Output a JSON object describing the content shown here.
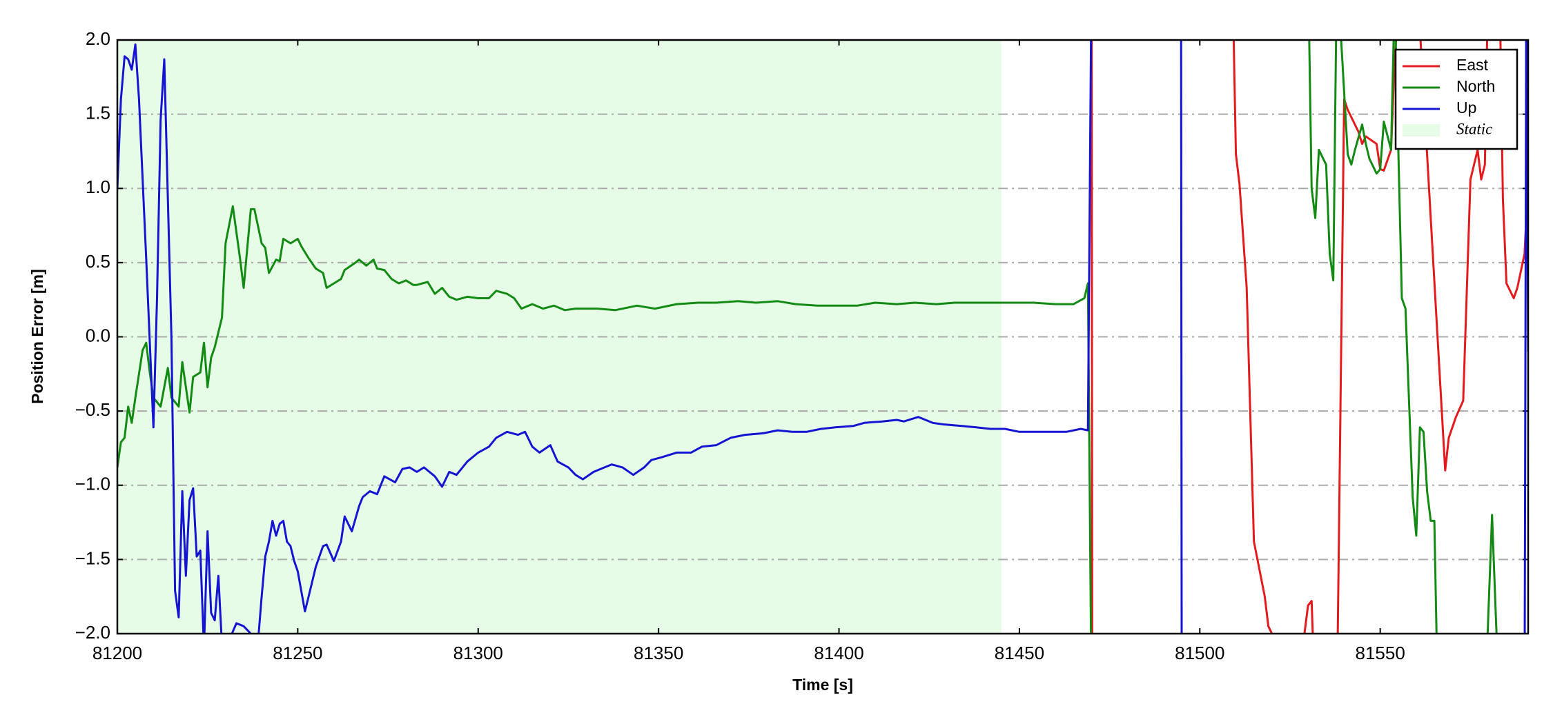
{
  "chart_data": {
    "type": "line",
    "xlabel": "Time [s]",
    "ylabel": "Position Error [m]",
    "xlim": [
      81200,
      81591
    ],
    "ylim": [
      -2,
      2
    ],
    "xticks": [
      81200,
      81250,
      81300,
      81350,
      81400,
      81450,
      81500,
      81550
    ],
    "yticks": [
      {
        "value": -2,
        "label": "−2.0"
      },
      {
        "value": -1.5,
        "label": "−1.5"
      },
      {
        "value": -1,
        "label": "−1.0"
      },
      {
        "value": -0.5,
        "label": "−0.5"
      },
      {
        "value": 0,
        "label": "0.0"
      },
      {
        "value": 0.5,
        "label": "0.5"
      },
      {
        "value": 1,
        "label": "1.0"
      },
      {
        "value": 1.5,
        "label": "1.5"
      },
      {
        "value": 2,
        "label": "2.0"
      }
    ],
    "grid": true,
    "legend": "upper right",
    "shaded_regions": [
      {
        "name": "Static",
        "xlim": [
          81200,
          81445
        ],
        "color": "#e6fce6"
      }
    ],
    "series": [
      {
        "name": "East",
        "color": "#e41a1c",
        "x": [
          81470,
          81470.2,
          null,
          81509,
          81510,
          81511,
          81513,
          81515,
          81518,
          81519,
          81520,
          81521,
          null,
          81529,
          81530,
          81531,
          81532,
          null,
          81538,
          81540,
          81541,
          81542,
          81544,
          81545,
          81546,
          81549,
          81550,
          81551,
          81553,
          81554,
          81556,
          81560,
          81568,
          81569,
          81571,
          81573,
          81575,
          81577,
          81578,
          81579,
          81580,
          81583,
          81584,
          81585,
          81587,
          81588,
          81590,
          81591
        ],
        "values": [
          2.5,
          -2.5,
          null,
          2.5,
          1.23,
          1.03,
          0.33,
          -1.38,
          -1.75,
          -1.95,
          -2.0,
          -2.1,
          null,
          -2.0,
          -1.81,
          -1.78,
          -2.5,
          null,
          -2.5,
          1.6,
          1.53,
          1.48,
          1.38,
          1.3,
          1.35,
          1.3,
          1.13,
          1.12,
          1.26,
          1.87,
          2.5,
          2.5,
          -0.9,
          -0.68,
          -0.54,
          -0.43,
          1.06,
          1.26,
          1.06,
          1.16,
          2.5,
          2.5,
          0.93,
          0.36,
          0.26,
          0.33,
          0.56,
          1.06
        ]
      },
      {
        "name": "North",
        "color": "#138a13",
        "x": [
          81200,
          81201,
          81202,
          81203,
          81204,
          81205,
          81207,
          81208,
          81209,
          81210,
          81212,
          81214,
          81215,
          81217,
          81218,
          81220,
          81221,
          81223,
          81224,
          81225,
          81226,
          81227,
          81229,
          81230,
          81232,
          81234,
          81235,
          81237,
          81238,
          81240,
          81241,
          81242,
          81244,
          81245,
          81246,
          81248,
          81250,
          81251,
          81253,
          81255,
          81257,
          81258,
          81260,
          81262,
          81263,
          81266,
          81267,
          81269,
          81271,
          81272,
          81274,
          81276,
          81278,
          81280,
          81282,
          81283,
          81286,
          81288,
          81290,
          81292,
          81294,
          81297,
          81300,
          81303,
          81305,
          81308,
          81310,
          81312,
          81315,
          81318,
          81321,
          81324,
          81327,
          81333,
          81338,
          81344,
          81349,
          81355,
          81361,
          81366,
          81372,
          81377,
          81383,
          81388,
          81394,
          81399,
          81405,
          81410,
          81416,
          81421,
          81427,
          81432,
          81438,
          81443,
          81449,
          81454,
          81460,
          81465,
          81468,
          81469,
          81470,
          null,
          81530,
          81531,
          81532,
          81533,
          81535,
          81536,
          81537,
          81538,
          81541,
          81542,
          81543,
          81545,
          81546,
          81547,
          81549,
          81550,
          81551,
          81553,
          81554,
          81556,
          81557,
          81559,
          81560,
          81561,
          81562,
          81563,
          81564,
          81565,
          81566,
          null,
          81579,
          81581,
          81583
        ],
        "values": [
          -0.88,
          -0.71,
          -0.68,
          -0.47,
          -0.58,
          -0.41,
          -0.09,
          -0.04,
          -0.24,
          -0.41,
          -0.47,
          -0.21,
          -0.41,
          -0.47,
          -0.17,
          -0.51,
          -0.27,
          -0.24,
          -0.04,
          -0.34,
          -0.14,
          -0.07,
          0.13,
          0.63,
          0.88,
          0.53,
          0.33,
          0.86,
          0.86,
          0.63,
          0.6,
          0.43,
          0.52,
          0.51,
          0.66,
          0.63,
          0.66,
          0.61,
          0.53,
          0.46,
          0.43,
          0.33,
          0.36,
          0.39,
          0.45,
          0.5,
          0.52,
          0.48,
          0.52,
          0.46,
          0.45,
          0.39,
          0.36,
          0.38,
          0.35,
          0.35,
          0.37,
          0.29,
          0.33,
          0.27,
          0.25,
          0.27,
          0.26,
          0.26,
          0.31,
          0.29,
          0.26,
          0.19,
          0.22,
          0.19,
          0.21,
          0.18,
          0.19,
          0.19,
          0.18,
          0.21,
          0.19,
          0.22,
          0.23,
          0.23,
          0.24,
          0.23,
          0.24,
          0.22,
          0.21,
          0.21,
          0.21,
          0.23,
          0.22,
          0.23,
          0.22,
          0.23,
          0.23,
          0.23,
          0.23,
          0.23,
          0.22,
          0.22,
          0.26,
          0.36,
          -2.5,
          null,
          2.5,
          1.0,
          0.8,
          1.26,
          1.16,
          0.56,
          0.38,
          2.5,
          1.23,
          1.16,
          1.26,
          1.43,
          1.3,
          1.2,
          1.1,
          1.13,
          1.45,
          1.26,
          2.3,
          0.26,
          0.19,
          -1.08,
          -1.34,
          -0.61,
          -0.64,
          -1.04,
          -1.24,
          -1.24,
          -2.5,
          null,
          -2.5,
          -1.2,
          -2.5
        ]
      },
      {
        "name": "Up",
        "color": "#1414d2",
        "x": [
          81200,
          81201,
          81202,
          81203,
          81204,
          81205,
          81206,
          81208,
          81210,
          81211,
          81212,
          81213,
          81215,
          81216,
          81217,
          81218,
          81219,
          81220,
          81221,
          81222,
          81223,
          81224,
          81225,
          81226,
          81227,
          81228,
          81229,
          81230,
          81233,
          81235,
          81237,
          81239,
          81240,
          81241,
          81242,
          81243,
          81244,
          81245,
          81246,
          81247,
          81248,
          81249,
          81250,
          81252,
          81253,
          81255,
          81257,
          81258,
          81260,
          81262,
          81263,
          81265,
          81267,
          81268,
          81270,
          81272,
          81274,
          81277,
          81279,
          81281,
          81283,
          81285,
          81288,
          81290,
          81292,
          81294,
          81297,
          81300,
          81303,
          81305,
          81308,
          81311,
          81313,
          81315,
          81317,
          81320,
          81322,
          81325,
          81327,
          81329,
          81332,
          81335,
          81337,
          81340,
          81343,
          81346,
          81348,
          81351,
          81355,
          81359,
          81362,
          81366,
          81370,
          81374,
          81379,
          81383,
          81387,
          81391,
          81395,
          81399,
          81404,
          81407,
          81412,
          81416,
          81418,
          81422,
          81426,
          81429,
          81434,
          81438,
          81442,
          81446,
          81450,
          81454,
          81459,
          81463,
          81467,
          81469,
          81470,
          null,
          81494.8,
          81495,
          null,
          81590,
          81590.5,
          81591
        ],
        "values": [
          1.0,
          1.6,
          1.89,
          1.87,
          1.8,
          1.97,
          1.6,
          0.53,
          -0.61,
          0.26,
          1.46,
          1.87,
          -0.01,
          -1.71,
          -1.89,
          -1.04,
          -1.61,
          -1.1,
          -1.02,
          -1.48,
          -1.44,
          -2.1,
          -1.31,
          -1.86,
          -1.91,
          -1.61,
          -2.08,
          -2.1,
          -1.93,
          -1.95,
          -2.0,
          -2.05,
          -1.75,
          -1.48,
          -1.38,
          -1.24,
          -1.34,
          -1.26,
          -1.24,
          -1.38,
          -1.41,
          -1.51,
          -1.58,
          -1.85,
          -1.75,
          -1.55,
          -1.41,
          -1.4,
          -1.51,
          -1.38,
          -1.21,
          -1.31,
          -1.14,
          -1.08,
          -1.04,
          -1.06,
          -0.94,
          -0.98,
          -0.89,
          -0.88,
          -0.91,
          -0.88,
          -0.94,
          -1.01,
          -0.91,
          -0.93,
          -0.84,
          -0.78,
          -0.74,
          -0.68,
          -0.64,
          -0.66,
          -0.64,
          -0.74,
          -0.78,
          -0.73,
          -0.84,
          -0.88,
          -0.93,
          -0.96,
          -0.91,
          -0.88,
          -0.86,
          -0.88,
          -0.93,
          -0.88,
          -0.83,
          -0.81,
          -0.78,
          -0.78,
          -0.74,
          -0.73,
          -0.68,
          -0.66,
          -0.65,
          -0.63,
          -0.64,
          -0.64,
          -0.62,
          -0.61,
          -0.6,
          -0.58,
          -0.57,
          -0.56,
          -0.57,
          -0.54,
          -0.58,
          -0.59,
          -0.6,
          -0.61,
          -0.62,
          -0.62,
          -0.64,
          -0.64,
          -0.64,
          -0.64,
          -0.62,
          -0.63,
          2.5,
          null,
          2.5,
          -2.5,
          null,
          -2.5,
          2.5,
          -0.1
        ]
      }
    ]
  }
}
